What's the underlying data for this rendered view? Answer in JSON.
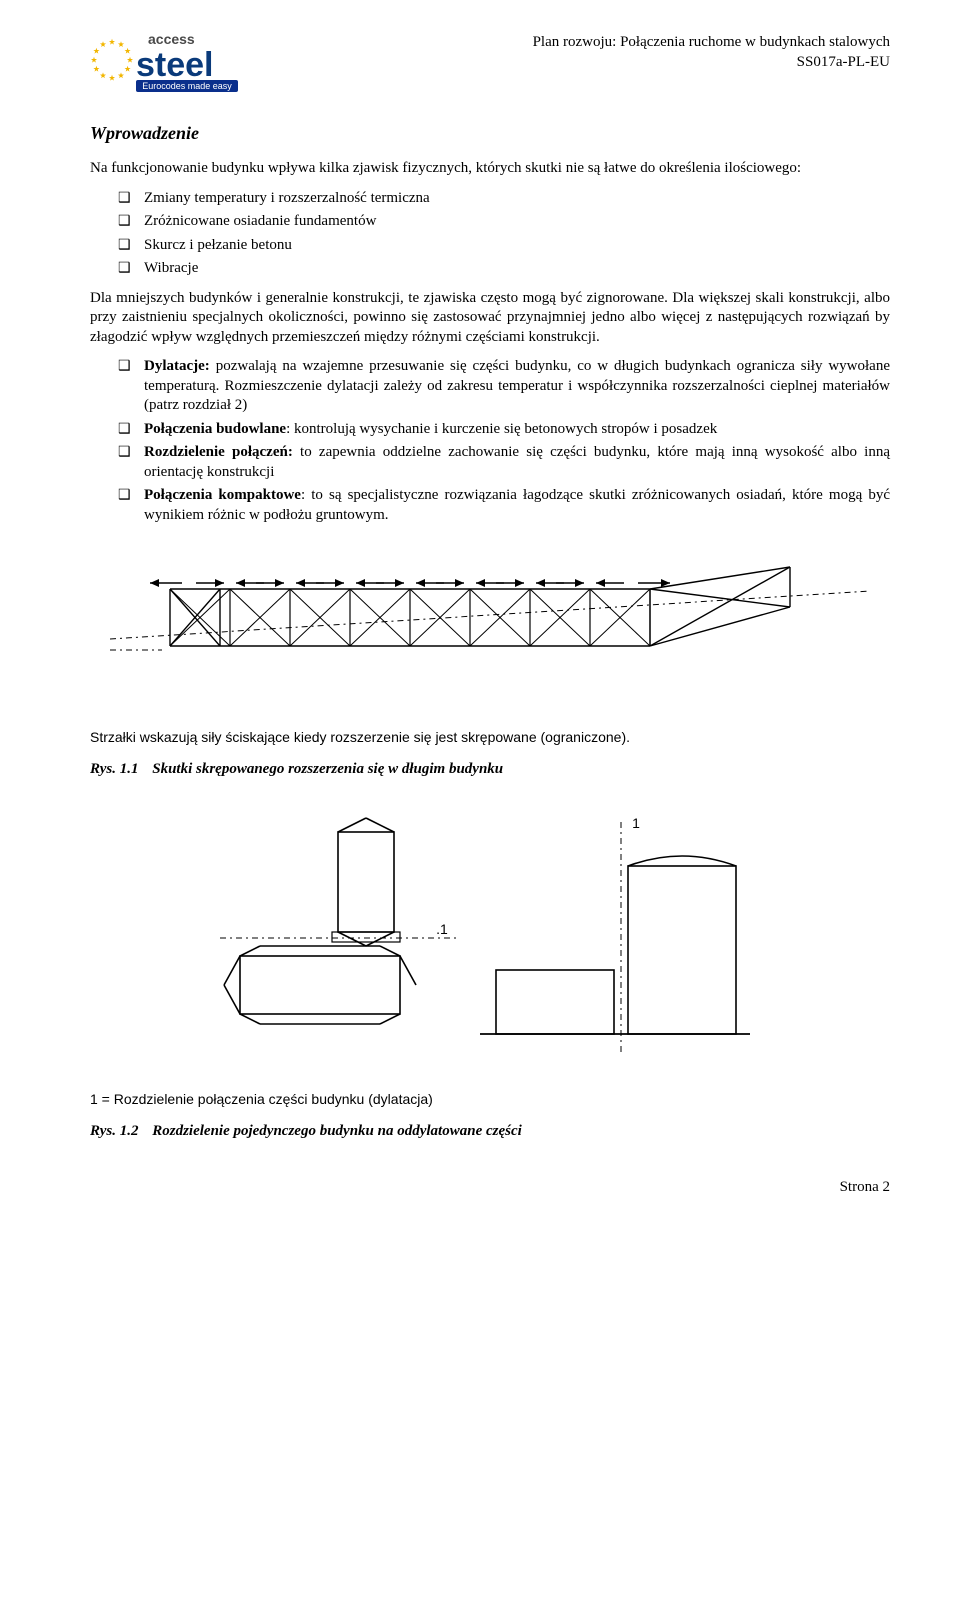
{
  "header": {
    "logo": {
      "text_access": "access",
      "text_steel": "steel",
      "tagline": "Eurocodes made easy"
    },
    "right_line1": "Plan rozwoju: Połączenia ruchome w budynkach stalowych",
    "right_line2": "SS017a-PL-EU"
  },
  "section_heading": "Wprowadzenie",
  "intro_para": "Na funkcjonowanie budynku wpływa kilka zjawisk fizycznych, których skutki nie są łatwe do określenia ilościowego:",
  "bullet_set1": [
    "Zmiany temperatury i rozszerzalność termiczna",
    "Zróżnicowane osiadanie fundamentów",
    "Skurcz i pełzanie betonu",
    "Wibracje"
  ],
  "mid_para": "Dla mniejszych budynków i generalnie konstrukcji, te zjawiska często mogą być zignorowane. Dla większej skali konstrukcji, albo przy zaistnieniu specjalnych okoliczności, powinno się zastosować przynajmniej jedno albo więcej z następujących rozwiązań by złagodzić wpływ względnych przemieszczeń między różnymi częściami konstrukcji.",
  "bullet_set2": [
    {
      "bold": "Dylatacje:",
      "rest": " pozwalają na wzajemne przesuwanie się części budynku, co w długich budynkach ogranicza siły wywołane temperaturą. Rozmieszczenie dylatacji zależy od zakresu temperatur i współczynnika rozszerzalności cieplnej materiałów (patrz rozdział 2)"
    },
    {
      "bold": "Połączenia budowlane",
      "rest": ": kontrolują wysychanie i kurczenie się betonowych stropów i posadzek"
    },
    {
      "bold": "Rozdzielenie połączeń:",
      "rest": " to zapewnia oddzielne zachowanie się części budynku, które mają inną wysokość albo inną orientację konstrukcji"
    },
    {
      "bold": "Połączenia kompaktowe",
      "rest": ": to są specjalistyczne rozwiązania łagodzące skutki zróżnicowanych osiadań, które mogą być wynikiem różnic w podłożu gruntowym."
    }
  ],
  "fig1": {
    "caption_plain": "Strzałki wskazują siły ściskające kiedy rozszerzenie się jest skrępowane (ograniczone).",
    "label_prefix": "Rys. 1.1",
    "label_text": "Skutki skrępowanego rozszerzenia się w długim budynku",
    "stroke": "#000000",
    "dash": "6,4,2,4"
  },
  "fig2": {
    "one_marker": "1",
    "one_dot": ".1",
    "legend": "1 = Rozdzielenie połączenia części budynku (dylatacja)",
    "label_prefix": "Rys. 1.2",
    "label_text": "Rozdzielenie pojedynczego budynku na oddylatowane części",
    "stroke": "#000000",
    "dash": "6,4,2,4"
  },
  "footer": "Strona 2",
  "colors": {
    "eu_blue": "#0a2f8c",
    "eu_gold": "#f2b600",
    "access_grey": "#4a4a4a",
    "steel_blue": "#0a3a7a",
    "tagline_bg": "#0a2f8c",
    "tagline_text": "#ffffff"
  }
}
